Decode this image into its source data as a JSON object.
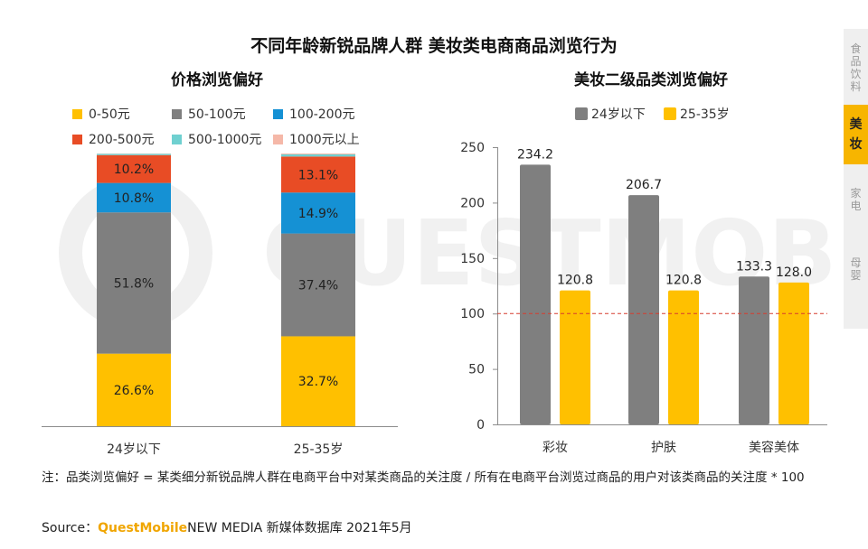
{
  "title": "不同年龄新锐品牌人群 美妆类电商商品浏览行为",
  "watermark_text": "QUESTMOBILE",
  "side_tabs": [
    {
      "label": "食品饮料",
      "active": false
    },
    {
      "label": "美妆",
      "active": true
    },
    {
      "label": "家电",
      "active": false
    },
    {
      "label": "母婴",
      "active": false
    }
  ],
  "note": "注：品类浏览偏好 = 某类细分新锐品牌人群在电商平台中对某类商品的关注度 / 所有在电商平台浏览过商品的用户对该类商品的关注度 * 100",
  "source": {
    "prefix": "Source：",
    "brand": "QuestMobile",
    "rest": "NEW MEDIA 新媒体数据库 2021年5月"
  },
  "colors": {
    "grey": "#7f7f7f",
    "yellow": "#ffc000",
    "blue": "#1591d4",
    "red": "#e84c25",
    "teal": "#6fd0d0",
    "pink": "#f5b8a8",
    "refline": "#d63b2f"
  },
  "chart_data": [
    {
      "type": "bar",
      "subtype": "stacked-100",
      "title": "价格浏览偏好",
      "categories": [
        "24岁以下",
        "25-35岁"
      ],
      "series": [
        {
          "name": "0-50元",
          "values": [
            26.6,
            32.7
          ],
          "labels": [
            "26.6%",
            "32.7%"
          ],
          "color": "#ffc000"
        },
        {
          "name": "50-100元",
          "values": [
            51.8,
            37.4
          ],
          "labels": [
            "51.8%",
            "37.4%"
          ],
          "color": "#7f7f7f"
        },
        {
          "name": "100-200元",
          "values": [
            10.8,
            14.9
          ],
          "labels": [
            "10.8%",
            "14.9%"
          ],
          "color": "#1591d4"
        },
        {
          "name": "200-500元",
          "values": [
            10.2,
            13.1
          ],
          "labels": [
            "10.2%",
            "13.1%"
          ],
          "color": "#e84c25"
        },
        {
          "name": "500-1000元",
          "values": [
            0.5,
            0.8
          ],
          "labels": [
            "",
            ""
          ],
          "color": "#6fd0d0"
        },
        {
          "name": "1000元以上",
          "values": [
            0.1,
            0.3
          ],
          "labels": [
            "",
            ""
          ],
          "color": "#f5b8a8"
        }
      ],
      "ylim": [
        0,
        100
      ],
      "legend": "top"
    },
    {
      "type": "bar",
      "title": "美妆二级品类浏览偏好",
      "categories": [
        "彩妆",
        "护肤",
        "美容美体"
      ],
      "series": [
        {
          "name": "24岁以下",
          "values": [
            234.2,
            206.7,
            133.3
          ],
          "labels": [
            "234.2",
            "206.7",
            "133.3"
          ],
          "color": "#7f7f7f"
        },
        {
          "name": "25-35岁",
          "values": [
            120.8,
            120.8,
            128.0
          ],
          "labels": [
            "120.8",
            "120.8",
            "128.0"
          ],
          "color": "#ffc000"
        }
      ],
      "ylim": [
        0,
        250
      ],
      "yticks": [
        0,
        50,
        100,
        150,
        200,
        250
      ],
      "reference_line": 100,
      "legend": "top"
    }
  ]
}
